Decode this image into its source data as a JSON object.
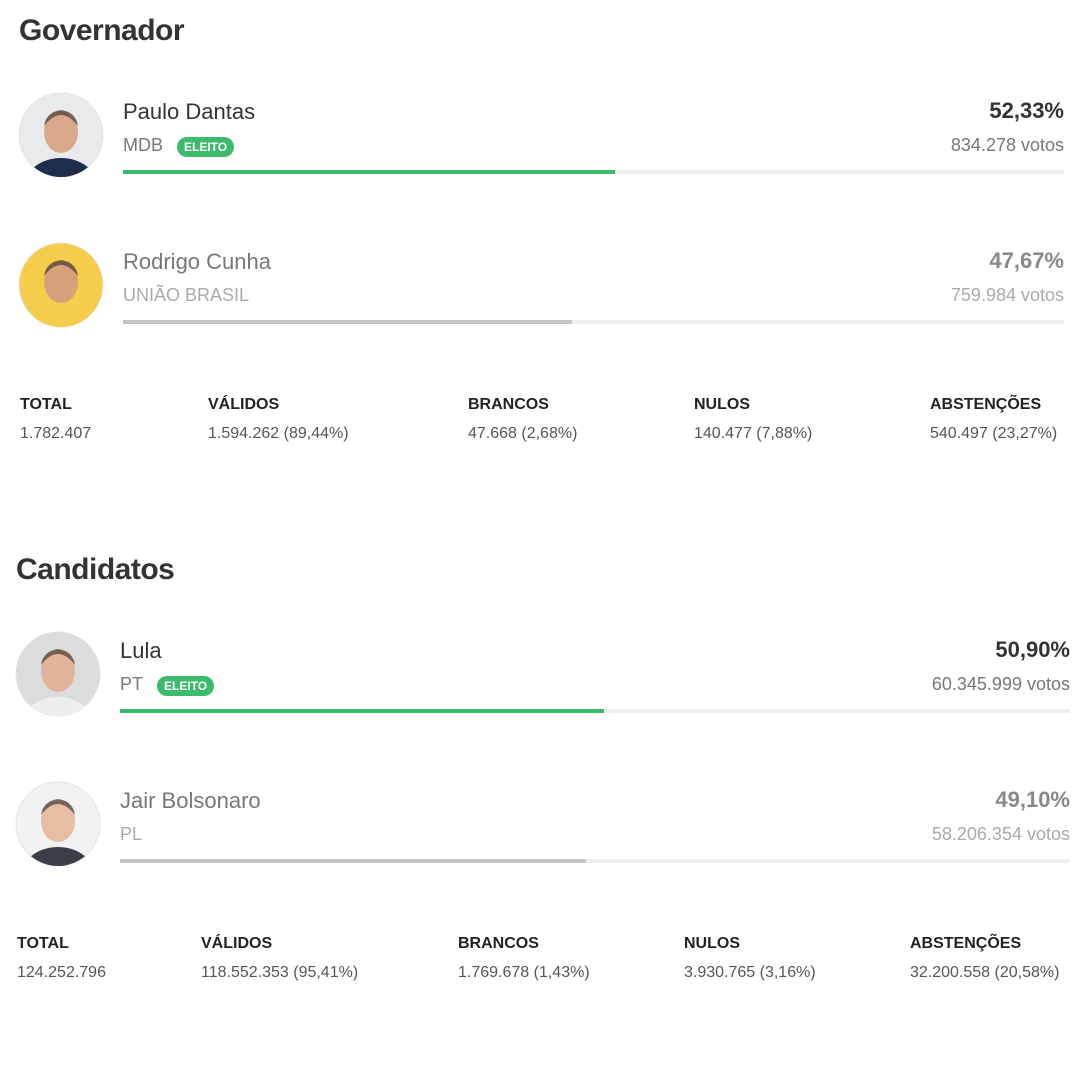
{
  "sections": [
    {
      "title": "Governador",
      "candidates": [
        {
          "name": "Paulo Dantas",
          "party": "MDB",
          "badge": "ELEITO",
          "share": 52.33,
          "share_label": "52,33%",
          "votes": "834.278 votos"
        },
        {
          "name": "Rodrigo Cunha",
          "party": "UNIÃO BRASIL",
          "share": 47.67,
          "share_label": "47,67%",
          "votes": "759.984 votos"
        }
      ],
      "stats": [
        {
          "label": "TOTAL",
          "value": "1.782.407"
        },
        {
          "label": "VÁLIDOS",
          "value": "1.594.262 (89,44%)"
        },
        {
          "label": "BRANCOS",
          "value": "47.668 (2,68%)"
        },
        {
          "label": "NULOS",
          "value": "140.477 (7,88%)"
        },
        {
          "label": "ABSTENÇÕES",
          "value": "540.497 (23,27%)"
        }
      ]
    },
    {
      "title": "Candidatos",
      "candidates": [
        {
          "name": "Lula",
          "party": "PT",
          "badge": "ELEITO",
          "share": 50.9,
          "share_label": "50,90%",
          "votes": "60.345.999 votos"
        },
        {
          "name": "Jair Bolsonaro",
          "party": "PL",
          "share": 49.1,
          "share_label": "49,10%",
          "votes": "58.206.354 votos"
        }
      ],
      "stats": [
        {
          "label": "TOTAL",
          "value": "124.252.796"
        },
        {
          "label": "VÁLIDOS",
          "value": "118.552.353 (95,41%)"
        },
        {
          "label": "BRANCOS",
          "value": "1.769.678 (1,43%)"
        },
        {
          "label": "NULOS",
          "value": "3.930.765 (3,16%)"
        },
        {
          "label": "ABSTENÇÕES",
          "value": "32.200.558 (20,58%)"
        }
      ]
    }
  ]
}
